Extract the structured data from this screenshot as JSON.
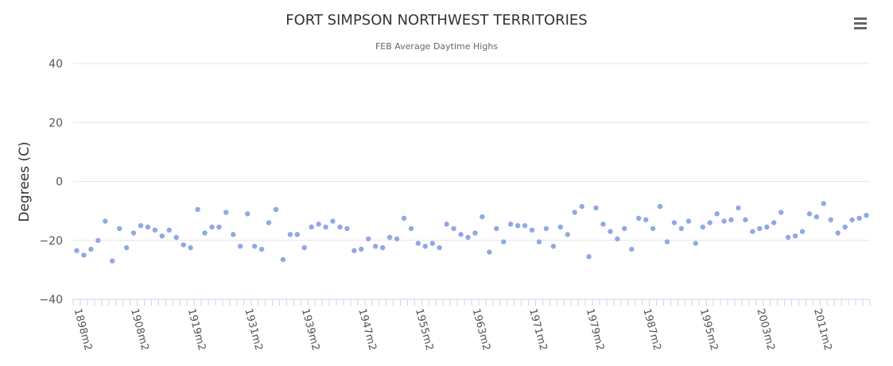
{
  "chart_data": {
    "type": "scatter",
    "title": "FORT SIMPSON NORTHWEST TERRITORIES",
    "subtitle": "FEB Average Daytime Highs",
    "ylabel": "Degrees (C)",
    "xlabel": "",
    "ylim": [
      -40,
      40
    ],
    "yticks": [
      "40",
      "20",
      "0",
      "−20",
      "−40"
    ],
    "grid": true,
    "legend": "none",
    "x_tick_labels": [
      "1898m2",
      "1908m2",
      "1919m2",
      "1931m2",
      "1939m2",
      "1947m2",
      "1955m2",
      "1963m2",
      "1971m2",
      "1979m2",
      "1987m2",
      "1995m2",
      "2003m2",
      "2011m2"
    ],
    "point_color": "#90a8e6",
    "values": [
      -23.5,
      -25,
      -23,
      -20,
      -13.5,
      -27,
      -16,
      -22.5,
      -17.5,
      -15,
      -15.5,
      -16.5,
      -18.5,
      -16.5,
      -19,
      -21.5,
      -22.5,
      -9.5,
      -17.5,
      -15.5,
      -15.5,
      -10.5,
      -18,
      -22,
      -11,
      -22,
      -23,
      -14,
      -9.5,
      -26.5,
      -18,
      -18,
      -22.5,
      -15.5,
      -14.5,
      -15.5,
      -13.5,
      -15.5,
      -16,
      -23.5,
      -23,
      -19.5,
      -22,
      -22.5,
      -19,
      -19.5,
      -12.5,
      -16,
      -21,
      -22,
      -21,
      -22.5,
      -14.5,
      -16,
      -18,
      -19,
      -17.5,
      -12,
      -24,
      -16,
      -20.5,
      -14.5,
      -15,
      -15,
      -16.5,
      -20.5,
      -16,
      -22,
      -15.5,
      -18,
      -10.5,
      -8.5,
      -25.5,
      -9,
      -14.5,
      -17,
      -19.5,
      -16,
      -23,
      -12.5,
      -13,
      -16,
      -8.5,
      -20.5,
      -14,
      -16,
      -13.5,
      -21,
      -15.5,
      -14,
      -11,
      -13.5,
      -13,
      -9,
      -13,
      -17,
      -16,
      -15.5,
      -14,
      -10.5,
      -19,
      -18.5,
      -17,
      -11,
      -12,
      -7.5,
      -13,
      -17.5,
      -15.5,
      -13,
      -12.5,
      -11.5
    ]
  },
  "icons": {
    "menu": "hamburger-menu-icon"
  }
}
